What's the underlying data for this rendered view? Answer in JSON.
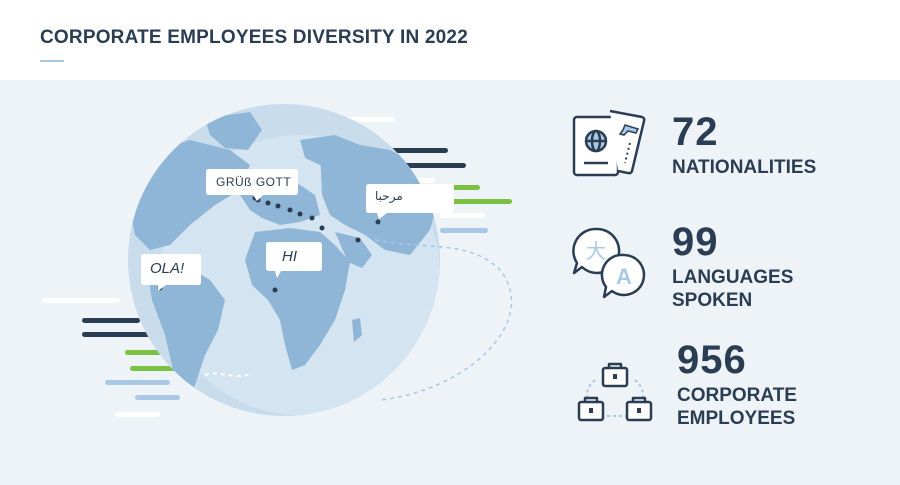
{
  "header": {
    "title": "CORPORATE EMPLOYEES DIVERSITY IN 2022"
  },
  "colors": {
    "navy": "#2a3d52",
    "globe_ocean": "#c9dcec",
    "land": "#8fb6d6",
    "accent_green": "#7cc242",
    "light_blue": "#a8c8e6",
    "panel_bg": "#eef3f8"
  },
  "greetings": [
    {
      "text": "GRÜß GOTT"
    },
    {
      "text": "مرحبا"
    },
    {
      "text": "OLA!"
    },
    {
      "text": "HI"
    }
  ],
  "stats": [
    {
      "value": "72",
      "label_lines": [
        "NATIONALITIES"
      ],
      "icon": "passport-icon"
    },
    {
      "value": "99",
      "label_lines": [
        "LANGUAGES",
        "SPOKEN"
      ],
      "icon": "translate-icon"
    },
    {
      "value": "956",
      "label_lines": [
        "CORPORATE",
        "EMPLOYEES"
      ],
      "icon": "briefcases-icon"
    }
  ]
}
